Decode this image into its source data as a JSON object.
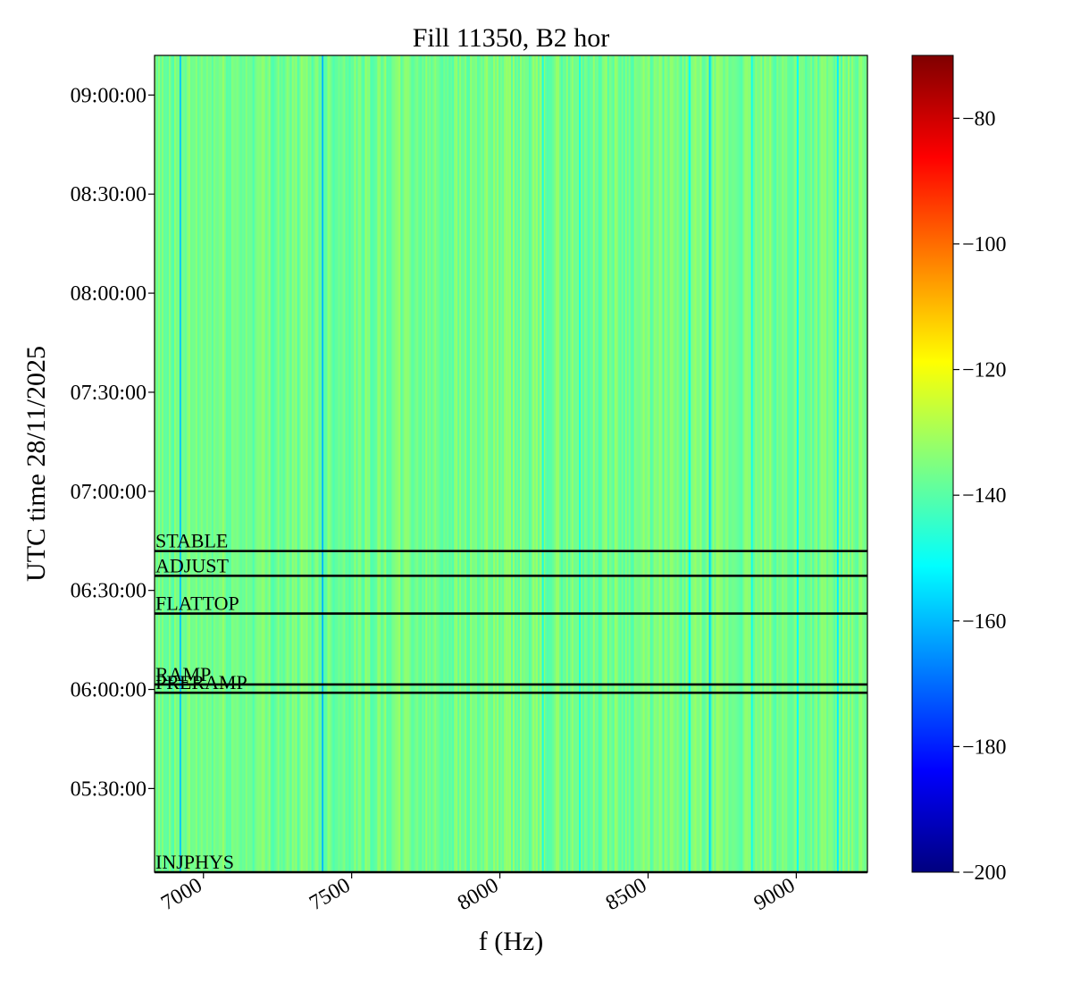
{
  "chart_data": {
    "type": "heatmap",
    "title": "Fill 11350, B2 hor",
    "xlabel": "f (Hz)",
    "ylabel": "UTC time 28/11/2025",
    "xlim": [
      6835,
      9240
    ],
    "ylim": [
      "05:04:40",
      "09:12:00"
    ],
    "x_ticks": [
      7000,
      7500,
      8000,
      8500,
      9000
    ],
    "x_tick_labels": [
      "7000",
      "7500",
      "8000",
      "8500",
      "9000"
    ],
    "y_ticks": [
      "05:30:00",
      "06:00:00",
      "06:30:00",
      "07:00:00",
      "07:30:00",
      "08:00:00",
      "08:30:00",
      "09:00:00"
    ],
    "y_tick_labels": [
      "05:30:00",
      "06:00:00",
      "06:30:00",
      "07:00:00",
      "07:30:00",
      "08:00:00",
      "08:30:00",
      "09:00:00"
    ],
    "colorbar": {
      "colormap": "jet",
      "range": [
        -200,
        -70
      ],
      "ticks": [
        -200,
        -180,
        -160,
        -140,
        -120,
        -100,
        -80
      ],
      "tick_labels": [
        "−200",
        "−180",
        "−160",
        "−140",
        "−120",
        "−100",
        "−80"
      ]
    },
    "background_level": -137,
    "spectral_lines": [
      {
        "f": 6922,
        "level": -158
      },
      {
        "f": 7402,
        "level": -160
      },
      {
        "f": 8145,
        "level": -148
      },
      {
        "f": 8270,
        "level": -148
      },
      {
        "f": 8640,
        "level": -150
      },
      {
        "f": 8708,
        "level": -156
      },
      {
        "f": 8850,
        "level": -149
      },
      {
        "f": 9005,
        "level": -150
      },
      {
        "f": 9140,
        "level": -153
      }
    ],
    "annotations": [
      {
        "label": "STABLE",
        "time": "06:41:55"
      },
      {
        "label": "ADJUST",
        "time": "06:34:25"
      },
      {
        "label": "FLATTOP",
        "time": "06:23:00"
      },
      {
        "label": "RAMP",
        "time": "06:01:30"
      },
      {
        "label": "PRERAMP",
        "time": "05:59:00"
      },
      {
        "label": "INJPHYS",
        "time": "05:04:40"
      }
    ]
  }
}
